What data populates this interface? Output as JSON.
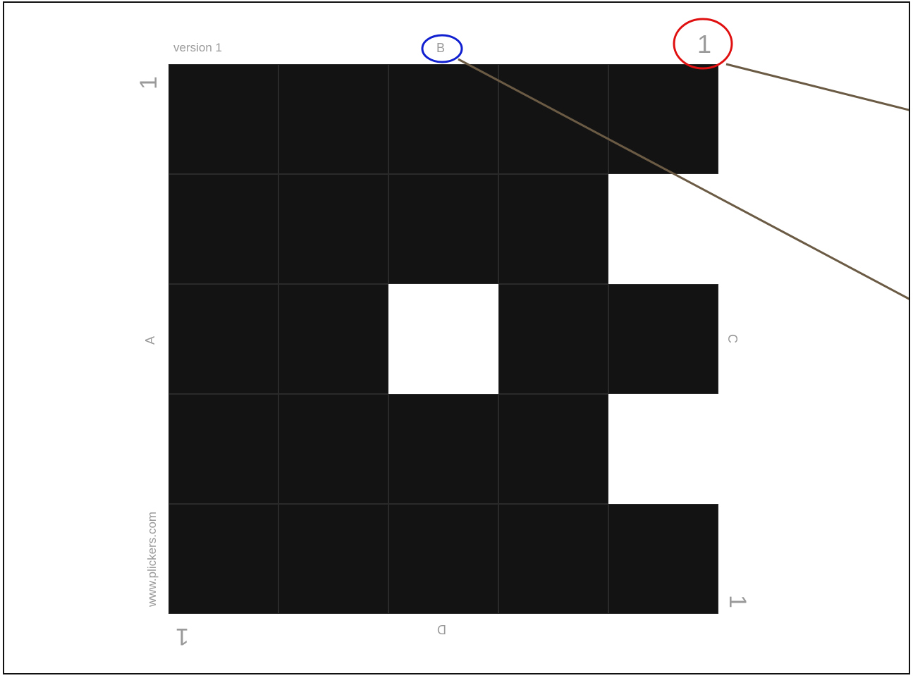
{
  "card": {
    "version_label": "version 1",
    "website_label": "www.plickers.com",
    "letter_top": "B",
    "letter_left": "A",
    "letter_right": "C",
    "letter_bottom": "D",
    "card_number": "1",
    "grid_rows": [
      [
        1,
        1,
        1,
        1,
        1
      ],
      [
        1,
        1,
        1,
        1,
        0
      ],
      [
        1,
        1,
        0,
        1,
        1
      ],
      [
        1,
        1,
        1,
        1,
        0
      ],
      [
        1,
        1,
        1,
        1,
        1
      ]
    ]
  },
  "annotations": {
    "red_circle_color": "#e01010",
    "blue_circle_color": "#1020d0",
    "line_color": "#6b5b45"
  }
}
